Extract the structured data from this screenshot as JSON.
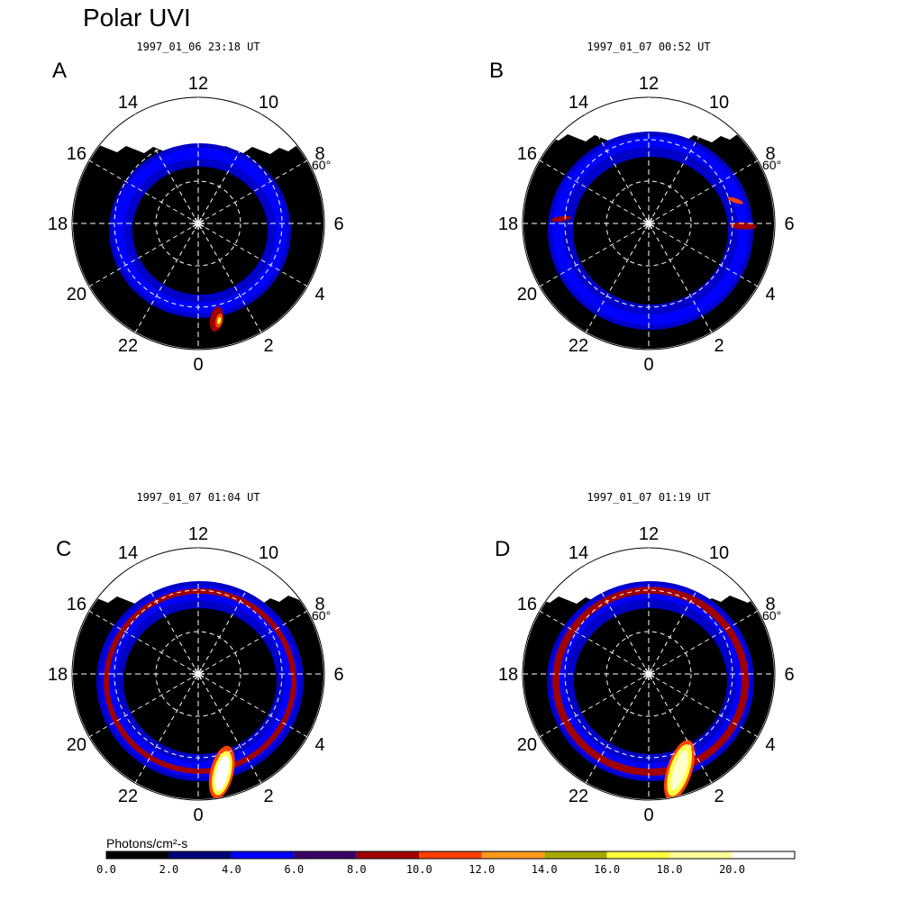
{
  "title": "Polar UVI",
  "panels": [
    {
      "letter": "A",
      "timestamp": "1997_01_06 23:18 UT",
      "variant": 0
    },
    {
      "letter": "B",
      "timestamp": "1997_01_07 00:52 UT",
      "variant": 1
    },
    {
      "letter": "C",
      "timestamp": "1997_01_07 01:04 UT",
      "variant": 2
    },
    {
      "letter": "D",
      "timestamp": "1997_01_07 01:19 UT",
      "variant": 3
    }
  ],
  "hour_labels": [
    "12",
    "10",
    "8",
    "6",
    "4",
    "2",
    "0",
    "22",
    "20",
    "18",
    "16",
    "14"
  ],
  "lat_label": "60°",
  "colorbar": {
    "label": "Photons/cm²-s",
    "ticks": [
      "0.0",
      "2.0",
      "4.0",
      "6.0",
      "8.0",
      "10.0",
      "12.0",
      "14.0",
      "16.0",
      "18.0",
      "20.0"
    ],
    "colors": [
      "#000000",
      "#00007a",
      "#0000ff",
      "#3a0066",
      "#a00000",
      "#ff4000",
      "#ff9a20",
      "#a8a800",
      "#ffff40",
      "#ffff99",
      "#ffffff"
    ]
  }
}
